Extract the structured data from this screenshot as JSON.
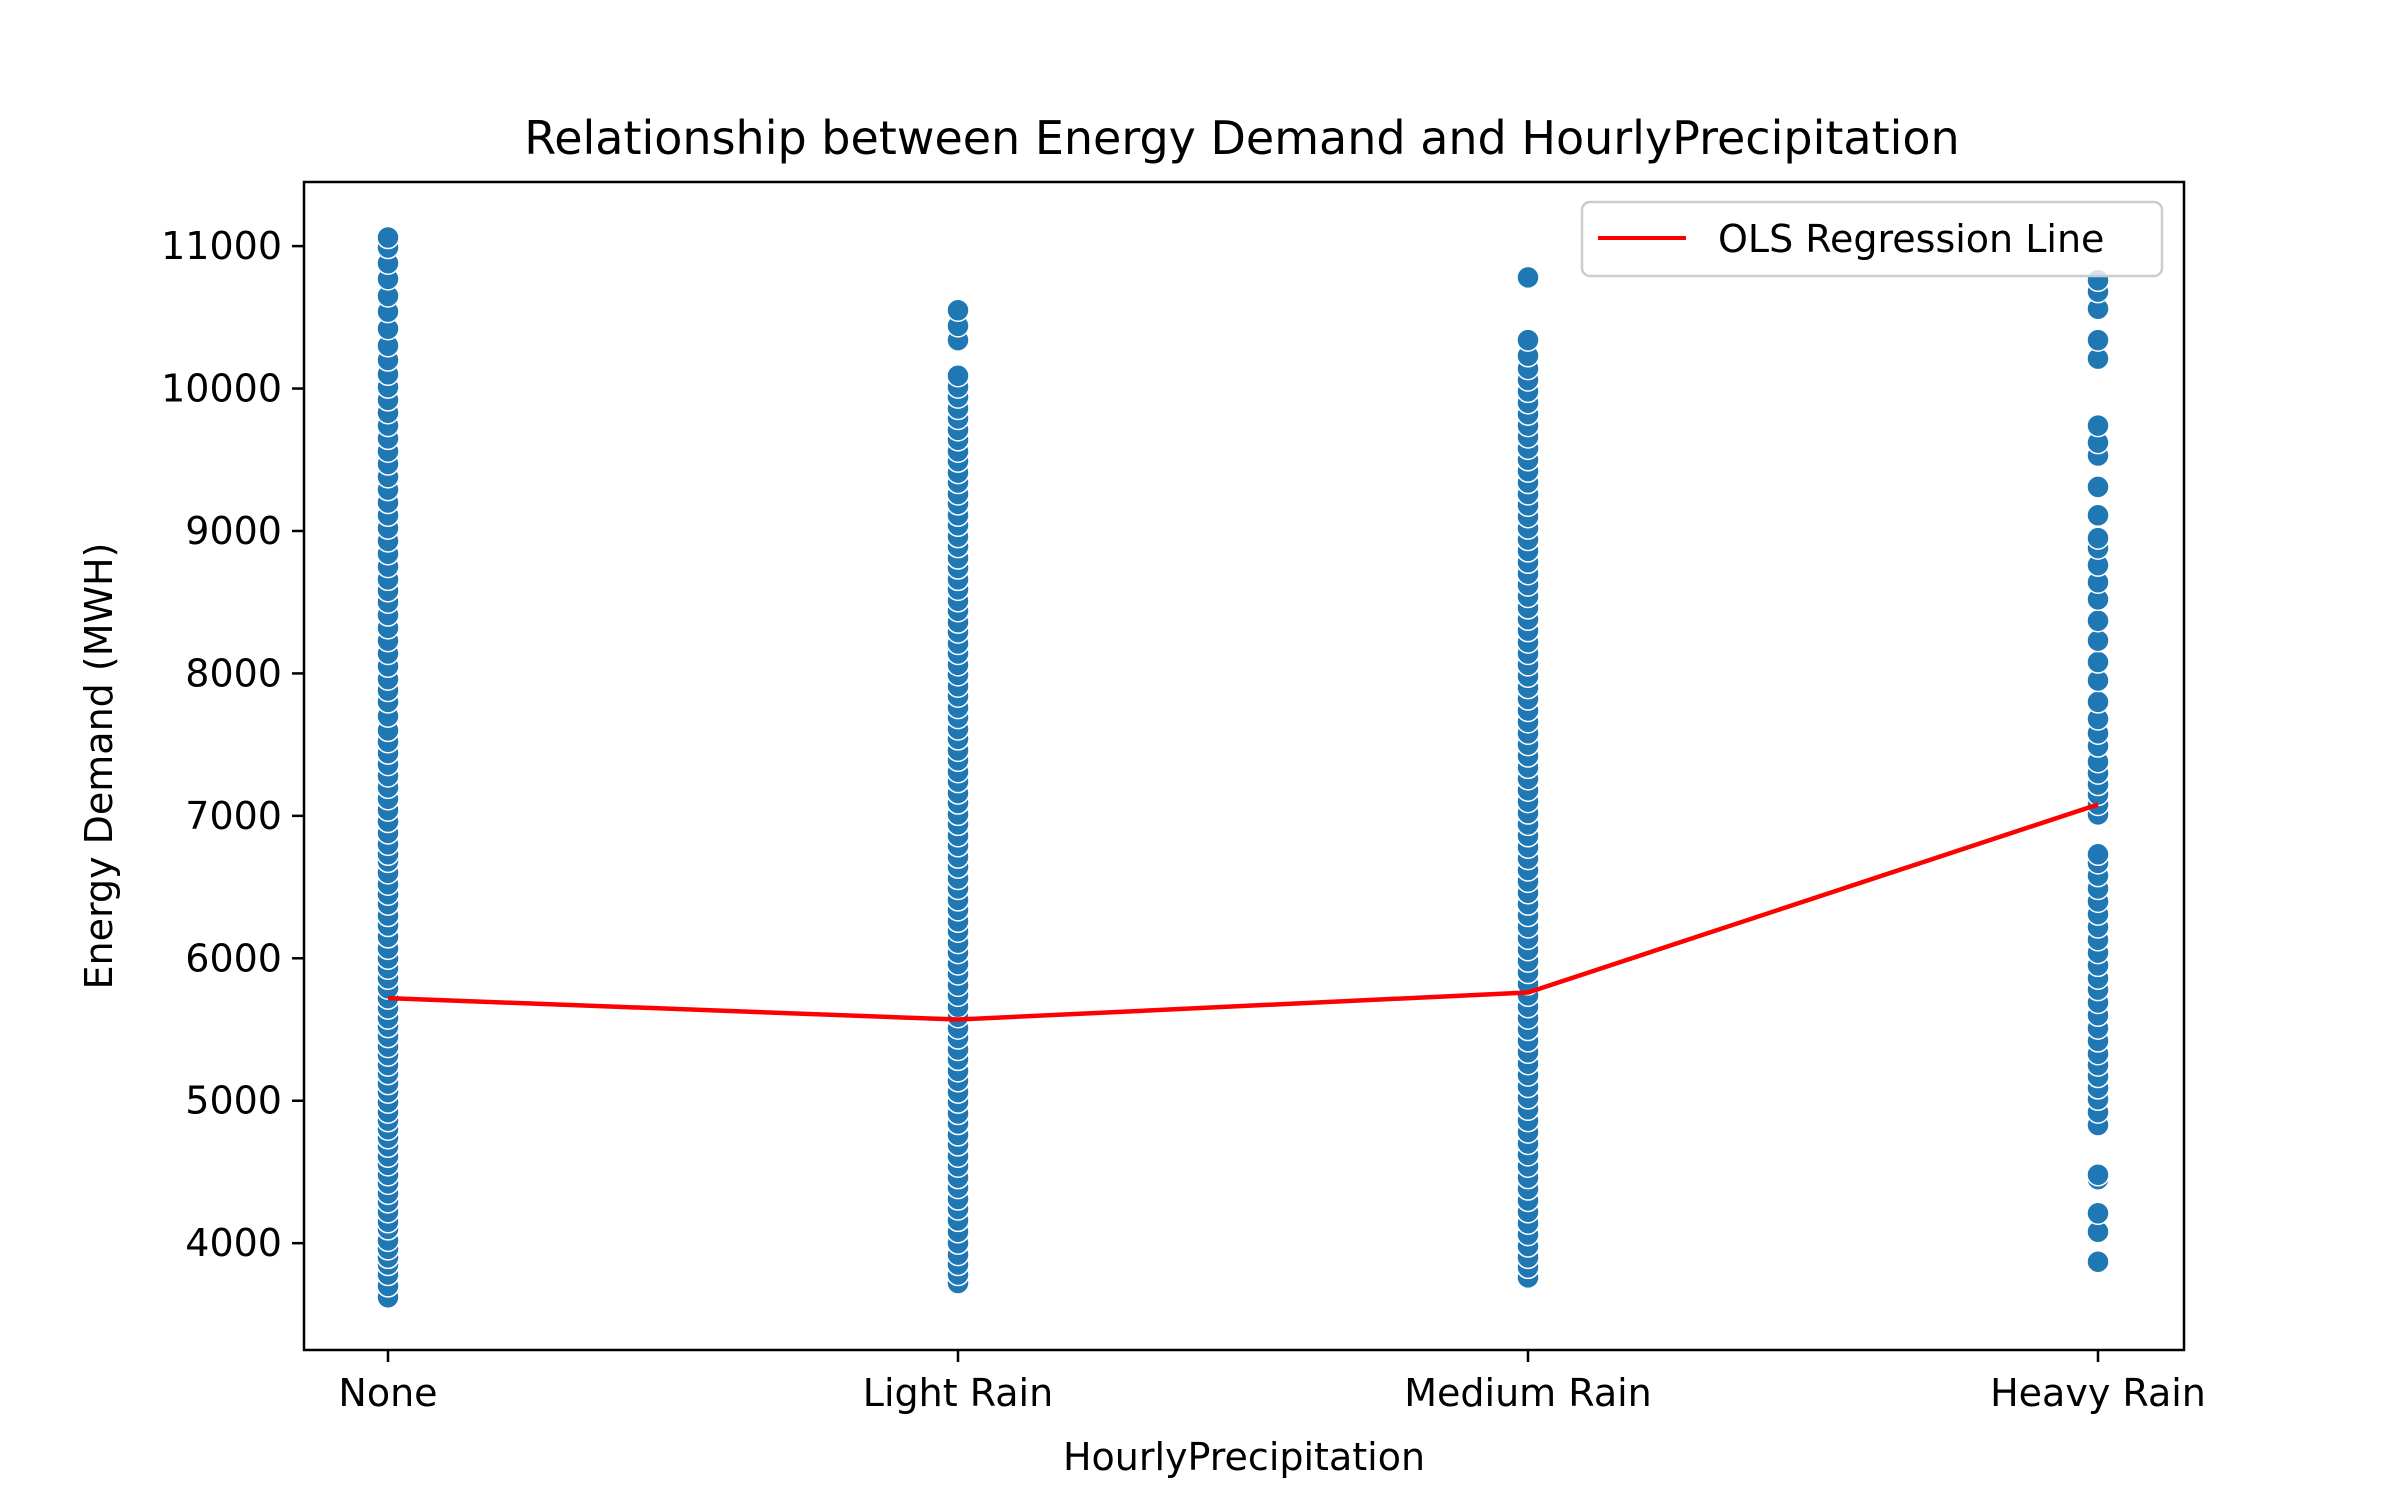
{
  "chart_data": {
    "type": "scatter",
    "title": "Relationship between Energy Demand and HourlyPrecipitation",
    "xlabel": "HourlyPrecipitation",
    "ylabel": "Energy Demand (MWH)",
    "categories": [
      "None",
      "Light Rain",
      "Medium Rain",
      "Heavy Rain"
    ],
    "ylim": [
      3250,
      11450
    ],
    "yticks": [
      4000,
      5000,
      6000,
      7000,
      8000,
      9000,
      10000,
      11000
    ],
    "ytick_labels": [
      "4000",
      "5000",
      "6000",
      "7000",
      "8000",
      "9000",
      "10000",
      "11000"
    ],
    "grid": false,
    "legend": {
      "position": "top-right",
      "entries": [
        "OLS Regression Line"
      ]
    },
    "colors": {
      "points": "#1f77b4",
      "regression": "#ff0000"
    },
    "series": [
      {
        "kind": "scatter",
        "points": {
          "None": [
            3620,
            3700,
            3780,
            3850,
            3900,
            3960,
            4020,
            4100,
            4150,
            4220,
            4290,
            4350,
            4420,
            4480,
            4550,
            4610,
            4680,
            4740,
            4800,
            4860,
            4920,
            4990,
            5060,
            5120,
            5190,
            5250,
            5320,
            5380,
            5450,
            5520,
            5580,
            5650,
            5720,
            5790,
            5860,
            5930,
            6000,
            6070,
            6150,
            6230,
            6300,
            6380,
            6450,
            6520,
            6600,
            6680,
            6730,
            6800,
            6880,
            6960,
            7040,
            7120,
            7200,
            7280,
            7360,
            7440,
            7520,
            7600,
            7700,
            7800,
            7880,
            7960,
            8050,
            8140,
            8230,
            8320,
            8410,
            8500,
            8580,
            8660,
            8750,
            8840,
            8930,
            9020,
            9110,
            9200,
            9290,
            9380,
            9470,
            9560,
            9650,
            9740,
            9830,
            9920,
            10010,
            10100,
            10200,
            10300,
            10420,
            10540,
            10650,
            10770,
            10880,
            10990,
            11060
          ],
          "Light Rain": [
            3720,
            3780,
            3850,
            3920,
            4000,
            4080,
            4160,
            4240,
            4310,
            4390,
            4460,
            4540,
            4610,
            4690,
            4760,
            4840,
            4910,
            4990,
            5060,
            5140,
            5210,
            5290,
            5360,
            5440,
            5510,
            5590,
            5660,
            5740,
            5810,
            5890,
            5960,
            6040,
            6110,
            6190,
            6260,
            6340,
            6410,
            6490,
            6560,
            6640,
            6710,
            6790,
            6860,
            6940,
            7010,
            7090,
            7160,
            7240,
            7310,
            7390,
            7460,
            7540,
            7610,
            7690,
            7760,
            7840,
            7910,
            7990,
            8060,
            8140,
            8210,
            8290,
            8360,
            8440,
            8510,
            8590,
            8660,
            8740,
            8810,
            8890,
            8960,
            9040,
            9110,
            9190,
            9260,
            9340,
            9410,
            9490,
            9560,
            9640,
            9710,
            9790,
            9860,
            9940,
            10010,
            10090,
            10340,
            10440,
            10550
          ],
          "Medium Rain": [
            3760,
            3830,
            3900,
            3980,
            4060,
            4140,
            4220,
            4300,
            4380,
            4460,
            4540,
            4620,
            4700,
            4780,
            4860,
            4940,
            5020,
            5100,
            5180,
            5260,
            5340,
            5420,
            5500,
            5580,
            5660,
            5740,
            5820,
            5900,
            5980,
            6060,
            6140,
            6220,
            6300,
            6380,
            6460,
            6540,
            6620,
            6700,
            6780,
            6860,
            6940,
            7020,
            7100,
            7180,
            7260,
            7340,
            7420,
            7500,
            7580,
            7660,
            7740,
            7820,
            7900,
            7980,
            8060,
            8140,
            8220,
            8300,
            8380,
            8460,
            8540,
            8620,
            8700,
            8780,
            8860,
            8940,
            9020,
            9100,
            9180,
            9260,
            9340,
            9420,
            9500,
            9580,
            9660,
            9740,
            9820,
            9900,
            9980,
            10060,
            10140,
            10230,
            10340,
            10780
          ],
          "Heavy Rain": [
            3870,
            4080,
            4210,
            4450,
            4480,
            4830,
            4920,
            5010,
            5090,
            5170,
            5250,
            5330,
            5420,
            5510,
            5600,
            5690,
            5780,
            5860,
            5950,
            6040,
            6130,
            6220,
            6310,
            6400,
            6490,
            6580,
            6670,
            6730,
            7010,
            7080,
            7150,
            7220,
            7300,
            7380,
            7490,
            7580,
            7680,
            7800,
            7950,
            8080,
            8230,
            8370,
            8520,
            8640,
            8760,
            8880,
            8950,
            9110,
            9310,
            9530,
            9620,
            9740,
            10210,
            10340,
            10560,
            10680,
            10760
          ]
        }
      },
      {
        "kind": "line",
        "name": "OLS Regression Line",
        "values": [
          5720,
          5570,
          5760,
          7080
        ]
      }
    ]
  }
}
